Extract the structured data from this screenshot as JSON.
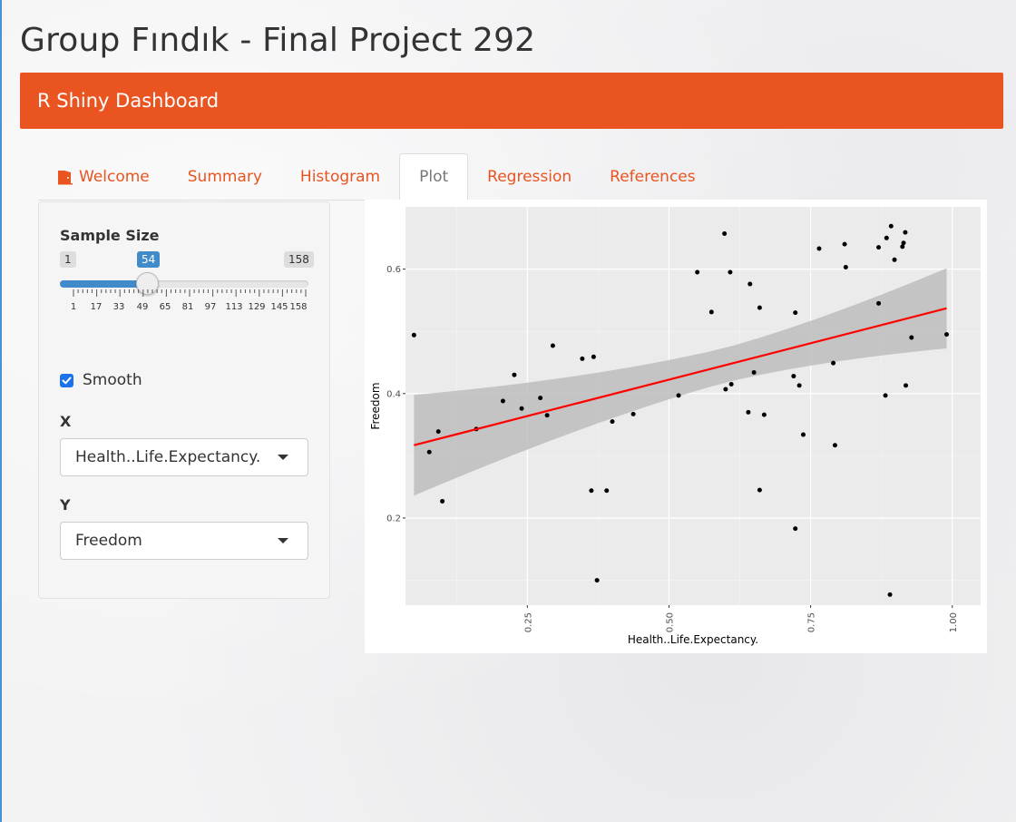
{
  "page": {
    "title": "Group Fındık - Final Project 292"
  },
  "navbar": {
    "brand": "R Shiny Dashboard",
    "color": "#e95420"
  },
  "tabs": [
    {
      "label": "Welcome",
      "icon": "door-open-icon",
      "active": false
    },
    {
      "label": "Summary",
      "active": false
    },
    {
      "label": "Histogram",
      "active": false
    },
    {
      "label": "Plot",
      "active": true
    },
    {
      "label": "Regression",
      "active": false
    },
    {
      "label": "References",
      "active": false
    }
  ],
  "sidebar": {
    "sample_size": {
      "label": "Sample Size",
      "min": "1",
      "max": "158",
      "value": "54",
      "tick_labels": [
        "1",
        "17",
        "33",
        "49",
        "65",
        "81",
        "97",
        "113",
        "129",
        "145",
        "158"
      ]
    },
    "smooth": {
      "label": "Smooth",
      "checked": true
    },
    "x": {
      "label": "X",
      "selected": "Health..Life.Expectancy."
    },
    "y": {
      "label": "Y",
      "selected": "Freedom"
    }
  },
  "chart_data": {
    "type": "scatter",
    "xlabel": "Health..Life.Expectancy.",
    "ylabel": "Freedom",
    "xlim": [
      0.035,
      1.05
    ],
    "ylim": [
      0.06,
      0.7
    ],
    "x_ticks": [
      "0.25",
      "0.50",
      "0.75",
      "1.00"
    ],
    "x_tick_values": [
      0.25,
      0.5,
      0.75,
      1.0
    ],
    "y_ticks": [
      "0.2",
      "0.4",
      "0.6"
    ],
    "y_tick_values": [
      0.2,
      0.4,
      0.6
    ],
    "grid": true,
    "smooth": {
      "method": "lm",
      "line_color": "#ff0000",
      "band_color": "#bdbdbd",
      "fit_start": [
        0.05,
        0.317
      ],
      "fit_end": [
        0.99,
        0.537
      ],
      "band_upper_start": 0.398,
      "band_lower_start": 0.236,
      "band_upper_end": 0.601,
      "band_lower_end": 0.472
    },
    "points": [
      [
        0.05,
        0.494
      ],
      [
        0.077,
        0.306
      ],
      [
        0.093,
        0.339
      ],
      [
        0.1,
        0.227
      ],
      [
        0.16,
        0.343
      ],
      [
        0.207,
        0.388
      ],
      [
        0.227,
        0.43
      ],
      [
        0.24,
        0.376
      ],
      [
        0.273,
        0.393
      ],
      [
        0.285,
        0.365
      ],
      [
        0.295,
        0.477
      ],
      [
        0.347,
        0.456
      ],
      [
        0.363,
        0.244
      ],
      [
        0.367,
        0.459
      ],
      [
        0.373,
        0.1
      ],
      [
        0.39,
        0.244
      ],
      [
        0.4,
        0.355
      ],
      [
        0.437,
        0.367
      ],
      [
        0.55,
        0.595
      ],
      [
        0.517,
        0.397
      ],
      [
        0.575,
        0.531
      ],
      [
        0.598,
        0.657
      ],
      [
        0.6,
        0.407
      ],
      [
        0.608,
        0.595
      ],
      [
        0.61,
        0.415
      ],
      [
        0.64,
        0.37
      ],
      [
        0.643,
        0.576
      ],
      [
        0.65,
        0.434
      ],
      [
        0.66,
        0.538
      ],
      [
        0.66,
        0.245
      ],
      [
        0.668,
        0.366
      ],
      [
        0.72,
        0.428
      ],
      [
        0.723,
        0.53
      ],
      [
        0.723,
        0.183
      ],
      [
        0.73,
        0.413
      ],
      [
        0.737,
        0.334
      ],
      [
        0.765,
        0.633
      ],
      [
        0.79,
        0.449
      ],
      [
        0.793,
        0.317
      ],
      [
        0.81,
        0.64
      ],
      [
        0.812,
        0.603
      ],
      [
        0.87,
        0.635
      ],
      [
        0.87,
        0.545
      ],
      [
        0.882,
        0.397
      ],
      [
        0.884,
        0.65
      ],
      [
        0.89,
        0.077
      ],
      [
        0.892,
        0.669
      ],
      [
        0.898,
        0.615
      ],
      [
        0.912,
        0.636
      ],
      [
        0.914,
        0.642
      ],
      [
        0.917,
        0.659
      ],
      [
        0.918,
        0.413
      ],
      [
        0.928,
        0.49
      ],
      [
        0.99,
        0.495
      ]
    ]
  }
}
